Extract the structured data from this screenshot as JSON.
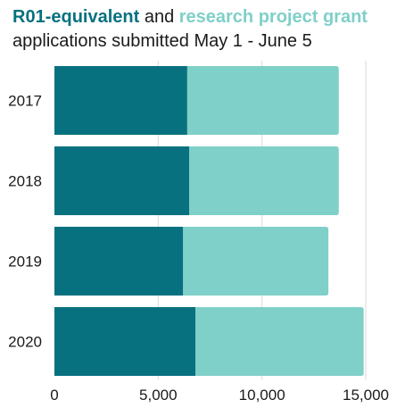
{
  "title": {
    "series1_label": "R01-equivalent",
    "connector": " and ",
    "series2_label": "research project grant",
    "line2": "applications submitted May 1 - June 5"
  },
  "colors": {
    "series1": "#08717f",
    "series2": "#7fd0c8",
    "grid": "#d9d9d9"
  },
  "chart_data": {
    "type": "bar",
    "orientation": "horizontal",
    "stacked": true,
    "categories": [
      "2017",
      "2018",
      "2019",
      "2020"
    ],
    "series": [
      {
        "name": "R01-equivalent",
        "values": [
          6400,
          6500,
          6200,
          6800
        ]
      },
      {
        "name": "research project grant",
        "values": [
          7300,
          7200,
          7000,
          8100
        ]
      }
    ],
    "xticks": [
      "0",
      "5,000",
      "10,000",
      "15,000"
    ],
    "xtick_values": [
      0,
      5000,
      10000,
      15000
    ],
    "xlim": [
      0,
      15000
    ],
    "grid": true,
    "title": "R01-equivalent and research project grant applications submitted May 1 - June 5"
  }
}
